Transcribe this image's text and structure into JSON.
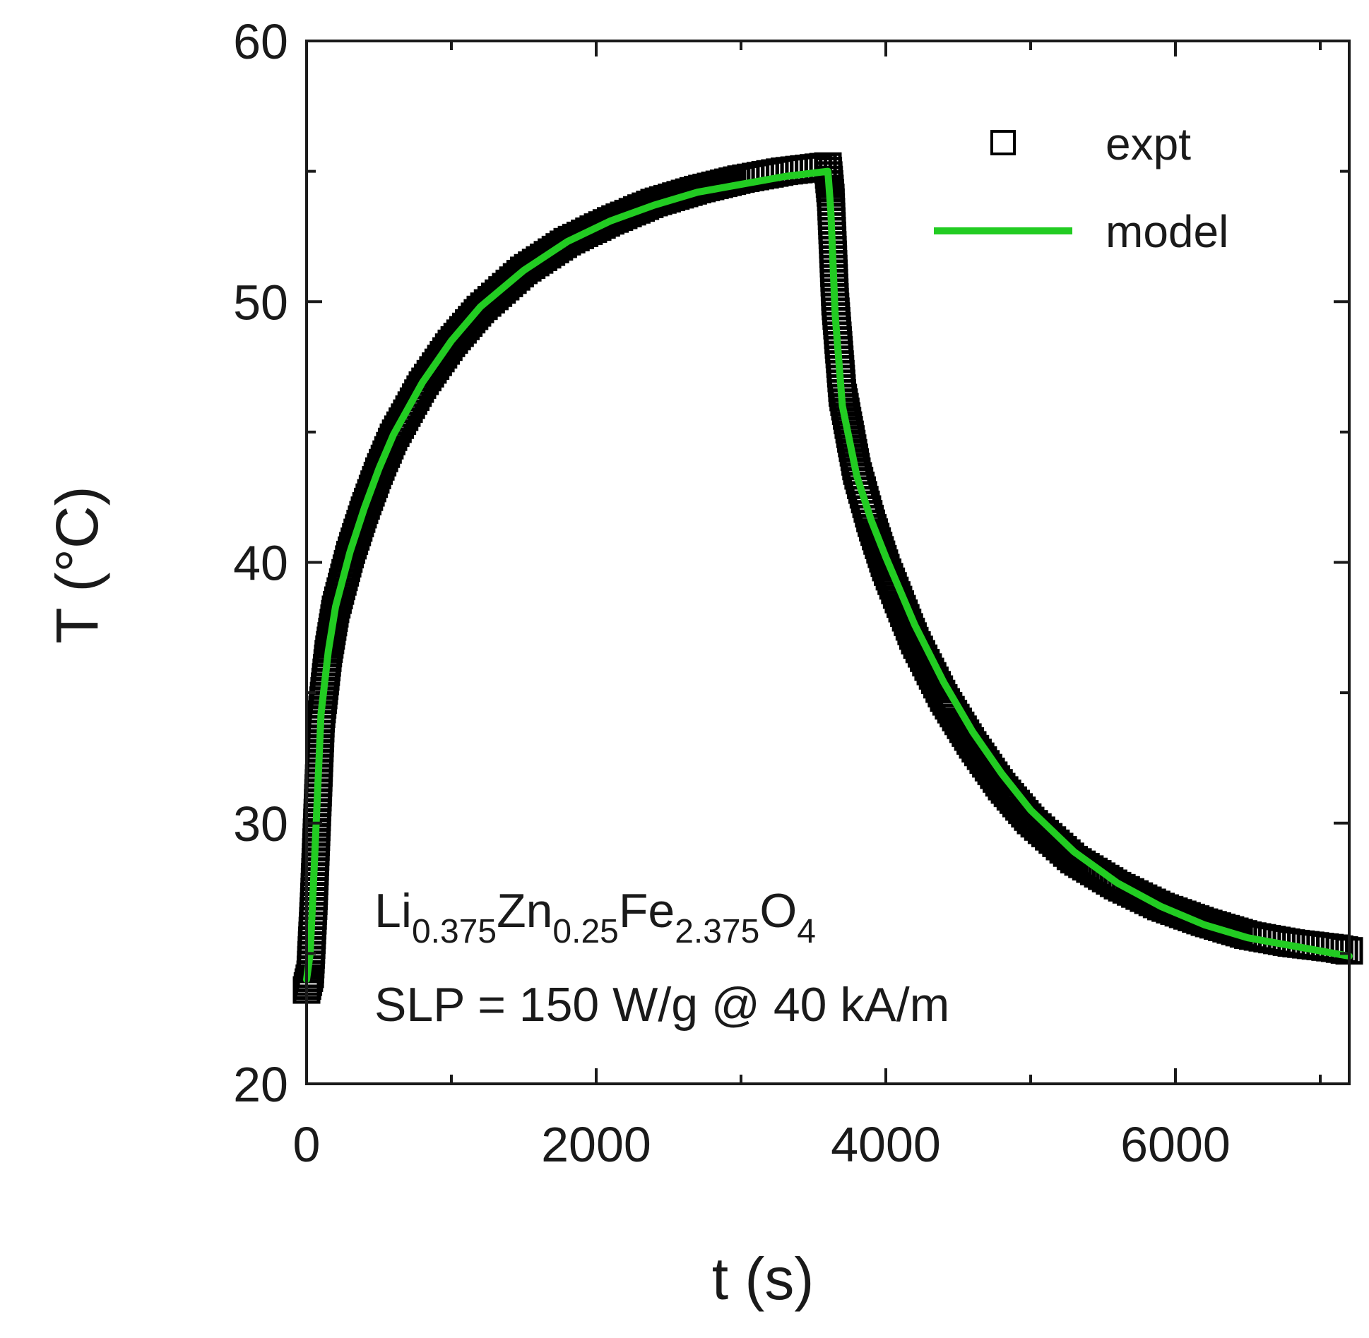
{
  "chart_data": {
    "type": "scatter",
    "title": "",
    "xlabel": "t (s)",
    "ylabel": "T (°C)",
    "xlim": [
      0,
      7200
    ],
    "ylim": [
      20,
      60
    ],
    "x_ticks": [
      0,
      2000,
      4000,
      6000
    ],
    "x_tick_labels": [
      "0",
      "2000",
      "4000",
      "6000"
    ],
    "x_minor_ticks": [
      1000,
      3000,
      5000,
      7000
    ],
    "y_ticks": [
      20,
      30,
      40,
      50,
      60
    ],
    "y_tick_labels": [
      "20",
      "30",
      "40",
      "50",
      "60"
    ],
    "y_minor_ticks": [
      25,
      35,
      45,
      55
    ],
    "grid": false,
    "legend": {
      "position": "top-right",
      "entries": [
        {
          "label": "expt",
          "marker": "open-square",
          "color": "#000000"
        },
        {
          "label": "model",
          "marker": "line",
          "color": "#22cc22"
        }
      ]
    },
    "series": [
      {
        "name": "expt",
        "style": "open-square markers",
        "color": "#000000",
        "x": [
          0,
          25,
          50,
          100,
          150,
          200,
          300,
          400,
          500,
          600,
          800,
          1000,
          1200,
          1500,
          1800,
          2100,
          2400,
          2700,
          3000,
          3300,
          3600,
          3620,
          3650,
          3700,
          3800,
          3900,
          4000,
          4200,
          4400,
          4600,
          4800,
          5000,
          5300,
          5600,
          5900,
          6200,
          6500,
          6800,
          7100,
          7200
        ],
        "y": [
          23.6,
          24.2,
          27.0,
          34.0,
          36.5,
          38.2,
          40.3,
          42.0,
          43.5,
          44.8,
          46.8,
          48.4,
          49.7,
          51.2,
          52.3,
          53.1,
          53.8,
          54.3,
          54.7,
          55.0,
          55.2,
          54.0,
          50.0,
          46.5,
          43.5,
          41.5,
          39.8,
          37.0,
          34.8,
          33.0,
          31.4,
          30.1,
          28.6,
          27.6,
          26.8,
          26.2,
          25.7,
          25.4,
          25.2,
          25.1
        ]
      },
      {
        "name": "model",
        "style": "line",
        "color": "#22cc22",
        "x": [
          0,
          25,
          50,
          100,
          150,
          200,
          300,
          400,
          500,
          600,
          800,
          1000,
          1200,
          1500,
          1800,
          2100,
          2400,
          2700,
          3000,
          3300,
          3600,
          3620,
          3650,
          3700,
          3800,
          3900,
          4000,
          4200,
          4400,
          4600,
          4800,
          5000,
          5300,
          5600,
          5900,
          6200,
          6500,
          6800,
          7100,
          7200
        ],
        "y": [
          24.0,
          25.0,
          28.0,
          34.2,
          36.6,
          38.3,
          40.4,
          42.1,
          43.6,
          44.9,
          46.9,
          48.5,
          49.8,
          51.2,
          52.3,
          53.1,
          53.7,
          54.2,
          54.5,
          54.8,
          55.0,
          53.5,
          49.5,
          46.0,
          43.3,
          41.6,
          40.2,
          37.6,
          35.4,
          33.5,
          31.9,
          30.5,
          28.9,
          27.7,
          26.8,
          26.1,
          25.6,
          25.3,
          25.0,
          24.9
        ]
      }
    ],
    "annotations": [
      {
        "segments": [
          {
            "text": "Li",
            "sub": false
          },
          {
            "text": "0.375",
            "sub": true
          },
          {
            "text": "Zn",
            "sub": false
          },
          {
            "text": "0.25",
            "sub": true
          },
          {
            "text": "Fe",
            "sub": false
          },
          {
            "text": "2.375",
            "sub": true
          },
          {
            "text": "O",
            "sub": false
          },
          {
            "text": "4",
            "sub": true
          }
        ]
      },
      {
        "text": "SLP = 150 W/g @ 40 kA/m"
      }
    ]
  }
}
